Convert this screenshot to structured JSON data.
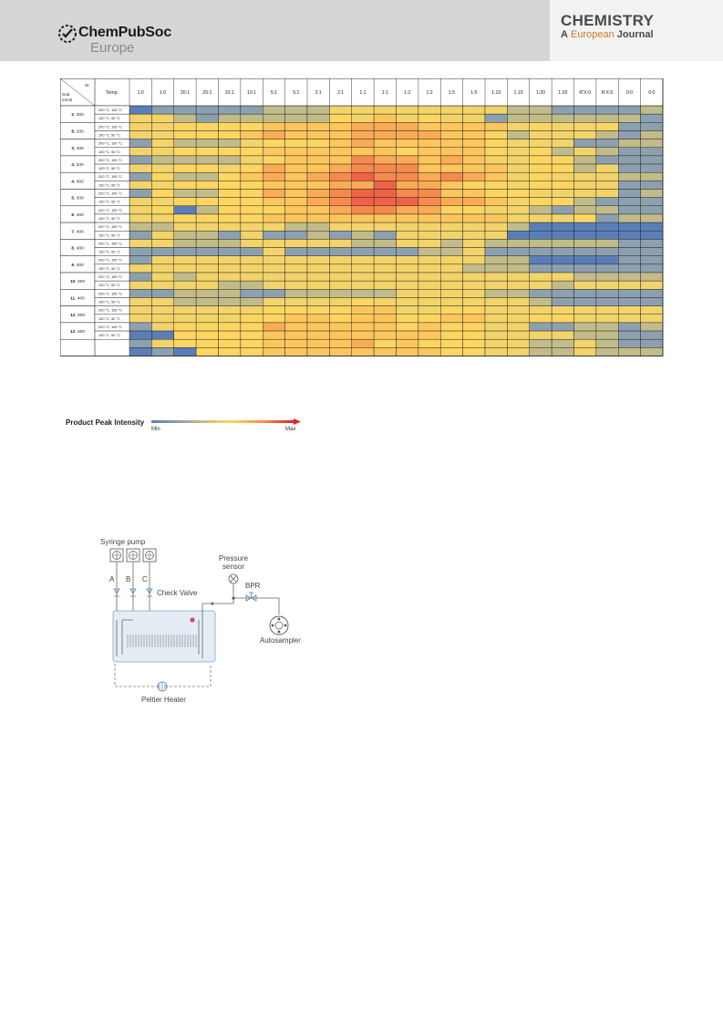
{
  "header": {
    "publisher_line1": "ChemPubSoc",
    "publisher_line2": "Europe",
    "journal_title": "CHEMISTRY",
    "journal_sub_a": "A",
    "journal_sub_eu": "European",
    "journal_sub_j": "Journal"
  },
  "heatmap": {
    "corner_top": "St.",
    "corner_mid": "Sub.",
    "corner_bot": "mmol",
    "temp_header": "Temp.",
    "columns": [
      "1:0",
      "1:0",
      "20:1",
      "20:1",
      "10:1",
      "10:1",
      "5:1",
      "5:1",
      "2:1",
      "2:1",
      "1:1",
      "1:1",
      "1:2",
      "1:2",
      "1:5",
      "1:5",
      "1:10",
      "1:10",
      "1:20",
      "1:20",
      "R'X:0",
      "R'X:0",
      "0:0",
      "0:0"
    ],
    "temp_values": [
      "200 °C, 150 °C",
      "100 °C, 50 °C"
    ],
    "substrates": [
      {
        "id": "2",
        "amount": "400"
      },
      {
        "id": "8",
        "amount": "200"
      },
      {
        "id": "3",
        "amount": "400"
      },
      {
        "id": "4",
        "amount": "200"
      },
      {
        "id": "4",
        "amount": "400"
      },
      {
        "id": "5",
        "amount": "300"
      },
      {
        "id": "6",
        "amount": "400"
      },
      {
        "id": "7",
        "amount": "400"
      },
      {
        "id": "8",
        "amount": "400"
      },
      {
        "id": "9",
        "amount": "400"
      },
      {
        "id": "10",
        "amount": "400"
      },
      {
        "id": "11",
        "amount": "400"
      },
      {
        "id": "12",
        "amount": "200"
      },
      {
        "id": "12",
        "amount": "400"
      }
    ],
    "colors": [
      "#5a7fb8",
      "#8da0b0",
      "#c2bb8a",
      "#f2d46a",
      "#fdd662",
      "#fdc65d",
      "#fbab56",
      "#f68a4e",
      "#ef6246"
    ],
    "grid": [
      "0111112223333333322111122011",
      "3321222224353433122222211322",
      "3344445555666555534334112222",
      "3344456555666655423332123422",
      "1322234445655555433311221122",
      "3344445555554555434232112422",
      "1222234555766565334421113322",
      "3344346556777555534423113322",
      "1422456567877676534333222232",
      "3344445556686654434433112323",
      "1422446567887755443333121123",
      "3344445567888766534421112233",
      "3402444556776644332122111122",
      "3344445555555555533341221132",
      "2233333223333333320000000011",
      "1322131121213333300000001122",
      "3322233333223323222222111122",
      "1111113111111223111111111222",
      "1333333333333333220000111122",
      "3333333333333332221111111122",
      "1323333333333333333322221123",
      "3333223333333333333233333333",
      "1122211222223333221111111122",
      "3322223333433333332111111133",
      "3333334444553344333333332233",
      "3333344554554455334433332222",
      "1344446555554544331122121111",
      "0044445555555544333322112222",
      "1344445555645444332232113311",
      "0104445555555544332232222232"
    ],
    "legend_title": "Product Peak Intensity",
    "legend_min": "Min",
    "legend_max": "Max"
  },
  "flow": {
    "syringe_pump": "Syringe pump",
    "line_a": "A",
    "line_b": "B",
    "line_c": "C",
    "check_valve": "Check Valve",
    "pressure_sensor_1": "Pressure",
    "pressure_sensor_2": "sensor",
    "bpr": "BPR",
    "autosampler": "Autosampler",
    "peltier": "Peltier Heater"
  }
}
